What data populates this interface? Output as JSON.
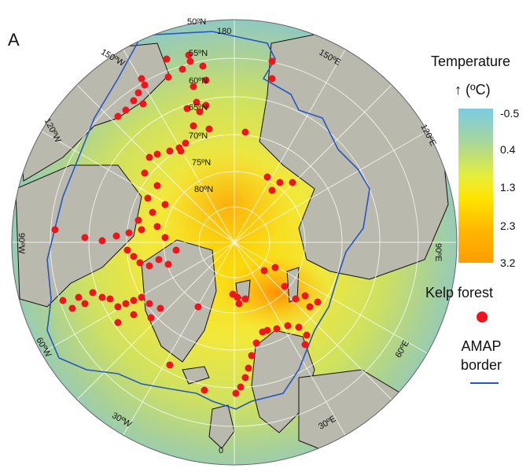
{
  "panel_label": "A",
  "legend": {
    "title": "Temperature",
    "subtitle": "↑ (ºC)",
    "ticks": [
      "-0.5",
      "0.4",
      "1.3",
      "2.3",
      "3.2"
    ],
    "kelp_label": "Kelp forest",
    "amap_label_1": "AMAP",
    "amap_label_2": "border",
    "kelp_color": "#f0141e",
    "amap_color": "#2557c7"
  },
  "map": {
    "lat_labels": [
      "50ºN",
      "55ºN",
      "60ºN",
      "65ºN",
      "70ºN",
      "75ºN",
      "80ºN"
    ],
    "lon_labels": [
      "180",
      "150ºE",
      "120ºE",
      "90ºE",
      "60ºE",
      "30ºE",
      "0",
      "30ºW",
      "60ºW",
      "90ºW",
      "120ºW",
      "150ºW"
    ]
  }
}
